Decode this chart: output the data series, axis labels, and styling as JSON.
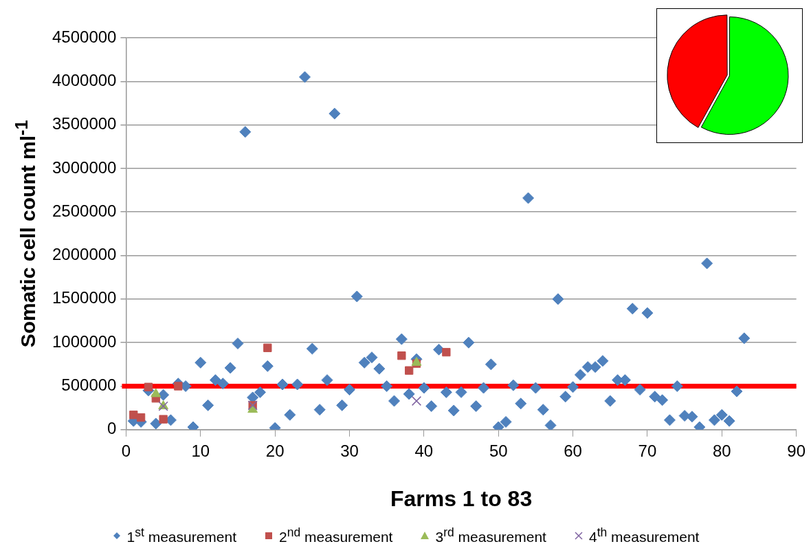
{
  "chart_data": [
    {
      "type": "scatter",
      "xlabel": "Farms 1 to 83",
      "ylabel": "Somatic cell count ml$^{-1}$",
      "xlim": [
        0,
        90
      ],
      "xticks": [
        0,
        10,
        20,
        30,
        40,
        50,
        60,
        70,
        80,
        90
      ],
      "ylim": [
        0,
        4500000
      ],
      "yticks": [
        0,
        500000,
        1000000,
        1500000,
        2000000,
        2500000,
        3000000,
        3500000,
        4000000,
        4500000
      ],
      "grid": "y",
      "legend": "bottom",
      "ref_lines": [
        {
          "axis": "y",
          "value": 500000,
          "color": "#ff0000"
        }
      ],
      "series": [
        {
          "name": "1$^{st}$ measurement",
          "color": "#4f81bd",
          "marker": "diamond",
          "x": [
            1,
            2,
            3,
            4,
            5,
            6,
            7,
            8,
            9,
            10,
            11,
            12,
            13,
            14,
            15,
            16,
            17,
            18,
            19,
            20,
            21,
            22,
            23,
            24,
            25,
            26,
            27,
            28,
            29,
            30,
            31,
            32,
            33,
            34,
            35,
            36,
            37,
            38,
            39,
            40,
            41,
            42,
            43,
            44,
            45,
            46,
            47,
            48,
            49,
            50,
            51,
            52,
            53,
            54,
            55,
            56,
            57,
            58,
            59,
            60,
            61,
            62,
            63,
            64,
            65,
            66,
            67,
            68,
            69,
            70,
            71,
            72,
            73,
            74,
            75,
            76,
            77,
            78,
            79,
            80,
            81,
            82,
            83
          ],
          "values": [
            100000,
            90000,
            450000,
            70000,
            400000,
            110000,
            530000,
            500000,
            30000,
            770000,
            280000,
            570000,
            530000,
            710000,
            990000,
            3420000,
            370000,
            430000,
            730000,
            20000,
            520000,
            170000,
            520000,
            4050000,
            930000,
            230000,
            570000,
            3630000,
            280000,
            460000,
            1530000,
            770000,
            830000,
            700000,
            500000,
            330000,
            1040000,
            410000,
            810000,
            480000,
            270000,
            920000,
            430000,
            220000,
            430000,
            1000000,
            270000,
            480000,
            750000,
            30000,
            90000,
            510000,
            300000,
            2660000,
            480000,
            230000,
            50000,
            1500000,
            380000,
            490000,
            630000,
            720000,
            720000,
            790000,
            330000,
            570000,
            570000,
            1390000,
            460000,
            1340000,
            380000,
            340000,
            110000,
            500000,
            160000,
            150000,
            30000,
            1910000,
            110000,
            170000,
            100000,
            440000,
            1050000
          ]
        },
        {
          "name": "2$^{nd}$ measurement",
          "color": "#c0504d",
          "marker": "square",
          "x": [
            1,
            2,
            3,
            4,
            5,
            7,
            17,
            19,
            37,
            38,
            39,
            43
          ],
          "values": [
            170000,
            140000,
            490000,
            360000,
            120000,
            500000,
            280000,
            940000,
            850000,
            680000,
            760000,
            890000
          ]
        },
        {
          "name": "3$^{rd}$ measurement",
          "color": "#9bbb59",
          "marker": "triangle",
          "x": [
            4,
            5,
            17,
            39
          ],
          "values": [
            410000,
            270000,
            230000,
            770000
          ]
        },
        {
          "name": "4$^{th}$ measurement",
          "color": "#8064a2",
          "marker": "cross",
          "x": [
            5,
            17,
            39
          ],
          "values": [
            270000,
            280000,
            330000
          ]
        }
      ]
    },
    {
      "type": "pie",
      "categories": [
        null,
        null
      ],
      "values": [
        58,
        42
      ],
      "colors": [
        "#00ff00",
        "#ff0000"
      ]
    }
  ]
}
